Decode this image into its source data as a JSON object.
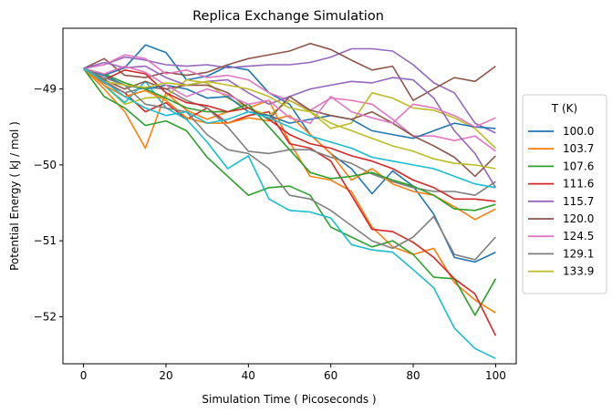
{
  "chart_data": {
    "type": "line",
    "title": "Replica Exchange Simulation",
    "xlabel": "Simulation Time ( Picoseconds )",
    "ylabel": "Potential Energy ( kJ / mol )",
    "xlim": [
      -5,
      105
    ],
    "ylim": [
      -52.62,
      -48.2
    ],
    "xticks": [
      0,
      20,
      40,
      60,
      80,
      100
    ],
    "yticks": [
      -52,
      -51,
      -50,
      -49
    ],
    "ytick_labels": [
      "−52",
      "−51",
      "−50",
      "−49"
    ],
    "grid": false,
    "legend": {
      "title": "T (K)",
      "placement": "outside-right"
    },
    "x": [
      0,
      5,
      10,
      15,
      20,
      25,
      30,
      35,
      40,
      45,
      50,
      55,
      60,
      65,
      70,
      75,
      80,
      85,
      90,
      95,
      100
    ],
    "series": [
      {
        "name": "100.0",
        "color": "#1f77b4",
        "values": [
          -48.73,
          -48.82,
          -48.72,
          -48.42,
          -48.52,
          -48.88,
          -48.83,
          -48.7,
          -48.75,
          -49.05,
          -49.2,
          -49.6,
          -49.85,
          -50.05,
          -50.38,
          -50.08,
          -50.28,
          -50.65,
          -51.22,
          -51.28,
          -51.15
        ]
      },
      {
        "name": "103.7",
        "color": "#ff7f0e",
        "values": [
          -48.73,
          -49.0,
          -49.3,
          -49.78,
          -49.05,
          -49.28,
          -49.4,
          -49.3,
          -49.25,
          -49.15,
          -49.7,
          -50.15,
          -50.2,
          -50.35,
          -50.82,
          -51.08,
          -51.18,
          -51.1,
          -51.55,
          -51.78,
          -51.95
        ]
      },
      {
        "name": "107.6",
        "color": "#2ca02c",
        "values": [
          -48.73,
          -49.1,
          -49.25,
          -49.48,
          -49.42,
          -49.55,
          -49.9,
          -50.15,
          -50.4,
          -50.3,
          -50.28,
          -50.4,
          -50.82,
          -50.95,
          -51.08,
          -51.0,
          -51.18,
          -51.48,
          -51.5,
          -51.98,
          -51.5
        ]
      },
      {
        "name": "111.6",
        "color": "#d62728",
        "values": [
          -48.73,
          -48.9,
          -49.05,
          -49.3,
          -49.18,
          -49.4,
          -49.25,
          -49.45,
          -49.35,
          -49.3,
          -49.72,
          -49.78,
          -49.95,
          -50.4,
          -50.85,
          -50.88,
          -51.02,
          -51.22,
          -51.5,
          -51.7,
          -52.25
        ]
      },
      {
        "name": "115.7",
        "color": "#9467bd",
        "values": [
          -48.73,
          -48.68,
          -48.58,
          -48.62,
          -48.68,
          -48.7,
          -48.68,
          -48.72,
          -48.7,
          -48.68,
          -48.68,
          -48.65,
          -48.58,
          -48.47,
          -48.47,
          -48.5,
          -48.68,
          -48.92,
          -49.05,
          -49.45,
          -49.58
        ]
      },
      {
        "name": "120.0",
        "color": "#8c564b",
        "values": [
          -48.73,
          -48.6,
          -48.82,
          -48.85,
          -48.78,
          -48.82,
          -48.78,
          -48.68,
          -48.6,
          -48.55,
          -48.5,
          -48.4,
          -48.48,
          -48.62,
          -48.75,
          -48.7,
          -49.15,
          -49.0,
          -48.85,
          -48.9,
          -48.7
        ]
      },
      {
        "name": "124.5",
        "color": "#e377c2",
        "values": [
          -48.73,
          -48.68,
          -48.55,
          -48.6,
          -48.8,
          -48.75,
          -48.85,
          -48.82,
          -48.88,
          -49.05,
          -49.15,
          -49.28,
          -49.12,
          -49.15,
          -49.2,
          -49.4,
          -49.62,
          -49.62,
          -49.68,
          -49.62,
          -49.82
        ]
      },
      {
        "name": "129.1",
        "color": "#7f7f7f",
        "values": [
          -48.73,
          -48.92,
          -49.05,
          -48.98,
          -49.0,
          -49.15,
          -49.25,
          -49.5,
          -49.82,
          -49.85,
          -49.8,
          -49.8,
          -49.9,
          -49.98,
          -50.12,
          -50.22,
          -50.3,
          -50.35,
          -50.35,
          -50.4,
          -50.22
        ]
      },
      {
        "name": "133.9",
        "color": "#bcbd22",
        "values": [
          -48.73,
          -48.95,
          -49.2,
          -49.12,
          -49.1,
          -48.88,
          -48.92,
          -49.12,
          -49.25,
          -49.35,
          -49.15,
          -49.3,
          -49.52,
          -49.45,
          -49.05,
          -49.12,
          -49.25,
          -49.28,
          -49.38,
          -49.52,
          -49.78
        ]
      },
      {
        "name": "",
        "color": "#17becf",
        "values": [
          -48.73,
          -48.95,
          -49.18,
          -48.9,
          -49.25,
          -49.4,
          -49.7,
          -50.05,
          -49.88,
          -50.45,
          -50.6,
          -50.62,
          -50.7,
          -51.05,
          -51.12,
          -51.15,
          -51.38,
          -51.62,
          -52.15,
          -52.42,
          -52.55
        ]
      },
      {
        "name": "",
        "color": "#1f77b4",
        "values": [
          -48.73,
          -48.82,
          -48.95,
          -49.0,
          -48.95,
          -49.0,
          -49.12,
          -49.1,
          -49.3,
          -49.35,
          -49.45,
          -49.4,
          -49.35,
          -49.4,
          -49.55,
          -49.6,
          -49.65,
          -49.55,
          -49.45,
          -49.5,
          -49.52
        ]
      },
      {
        "name": "",
        "color": "#ff7f0e",
        "values": [
          -48.73,
          -48.95,
          -49.1,
          -49.02,
          -49.15,
          -49.38,
          -49.45,
          -49.45,
          -49.38,
          -49.42,
          -49.35,
          -49.6,
          -49.85,
          -50.2,
          -50.05,
          -50.25,
          -50.35,
          -50.4,
          -50.55,
          -50.72,
          -50.58
        ]
      },
      {
        "name": "",
        "color": "#2ca02c",
        "values": [
          -48.73,
          -48.8,
          -48.92,
          -49.0,
          -49.12,
          -49.25,
          -49.3,
          -49.3,
          -49.2,
          -49.5,
          -49.8,
          -50.1,
          -50.18,
          -50.15,
          -50.1,
          -50.2,
          -50.28,
          -50.4,
          -50.58,
          -50.6,
          -50.52
        ]
      },
      {
        "name": "",
        "color": "#d62728",
        "values": [
          -48.73,
          -48.88,
          -48.75,
          -48.8,
          -49.05,
          -49.18,
          -49.22,
          -49.3,
          -49.25,
          -49.4,
          -49.6,
          -49.72,
          -49.78,
          -49.88,
          -49.95,
          -50.05,
          -50.2,
          -50.3,
          -50.45,
          -50.45,
          -50.48
        ]
      },
      {
        "name": "",
        "color": "#9467bd",
        "values": [
          -48.73,
          -48.65,
          -48.72,
          -48.7,
          -48.85,
          -48.95,
          -48.9,
          -48.88,
          -49.05,
          -49.2,
          -49.1,
          -49.0,
          -48.95,
          -48.9,
          -48.92,
          -48.85,
          -48.88,
          -49.12,
          -49.55,
          -49.85,
          -50.3
        ]
      },
      {
        "name": "",
        "color": "#8c564b",
        "values": [
          -48.73,
          -48.88,
          -49.0,
          -48.9,
          -49.0,
          -48.95,
          -48.95,
          -49.05,
          -49.25,
          -49.4,
          -49.1,
          -49.28,
          -49.35,
          -49.4,
          -49.3,
          -49.45,
          -49.62,
          -49.75,
          -49.9,
          -50.15,
          -49.88
        ]
      },
      {
        "name": "",
        "color": "#e377c2",
        "values": [
          -48.73,
          -48.8,
          -48.7,
          -48.78,
          -48.95,
          -49.1,
          -49.0,
          -49.08,
          -49.2,
          -49.15,
          -49.38,
          -49.45,
          -49.1,
          -49.3,
          -49.38,
          -49.45,
          -49.2,
          -49.25,
          -49.35,
          -49.5,
          -49.38
        ]
      },
      {
        "name": "",
        "color": "#7f7f7f",
        "values": [
          -48.73,
          -48.85,
          -48.95,
          -49.2,
          -49.25,
          -49.3,
          -49.6,
          -49.8,
          -49.85,
          -50.05,
          -50.4,
          -50.45,
          -50.6,
          -50.8,
          -51.0,
          -51.1,
          -50.95,
          -50.68,
          -51.18,
          -51.25,
          -50.95
        ]
      },
      {
        "name": "",
        "color": "#bcbd22",
        "values": [
          -48.73,
          -48.9,
          -48.95,
          -48.98,
          -48.92,
          -48.95,
          -48.9,
          -48.95,
          -49.0,
          -49.1,
          -49.25,
          -49.3,
          -49.45,
          -49.55,
          -49.65,
          -49.75,
          -49.82,
          -49.92,
          -49.98,
          -50.0,
          -50.05
        ]
      },
      {
        "name": "",
        "color": "#17becf",
        "values": [
          -48.73,
          -48.9,
          -49.1,
          -49.25,
          -49.35,
          -49.3,
          -49.45,
          -49.4,
          -49.3,
          -49.38,
          -49.5,
          -49.62,
          -49.7,
          -49.78,
          -49.9,
          -49.95,
          -50.0,
          -50.05,
          -50.15,
          -50.25,
          -50.3
        ]
      }
    ]
  }
}
